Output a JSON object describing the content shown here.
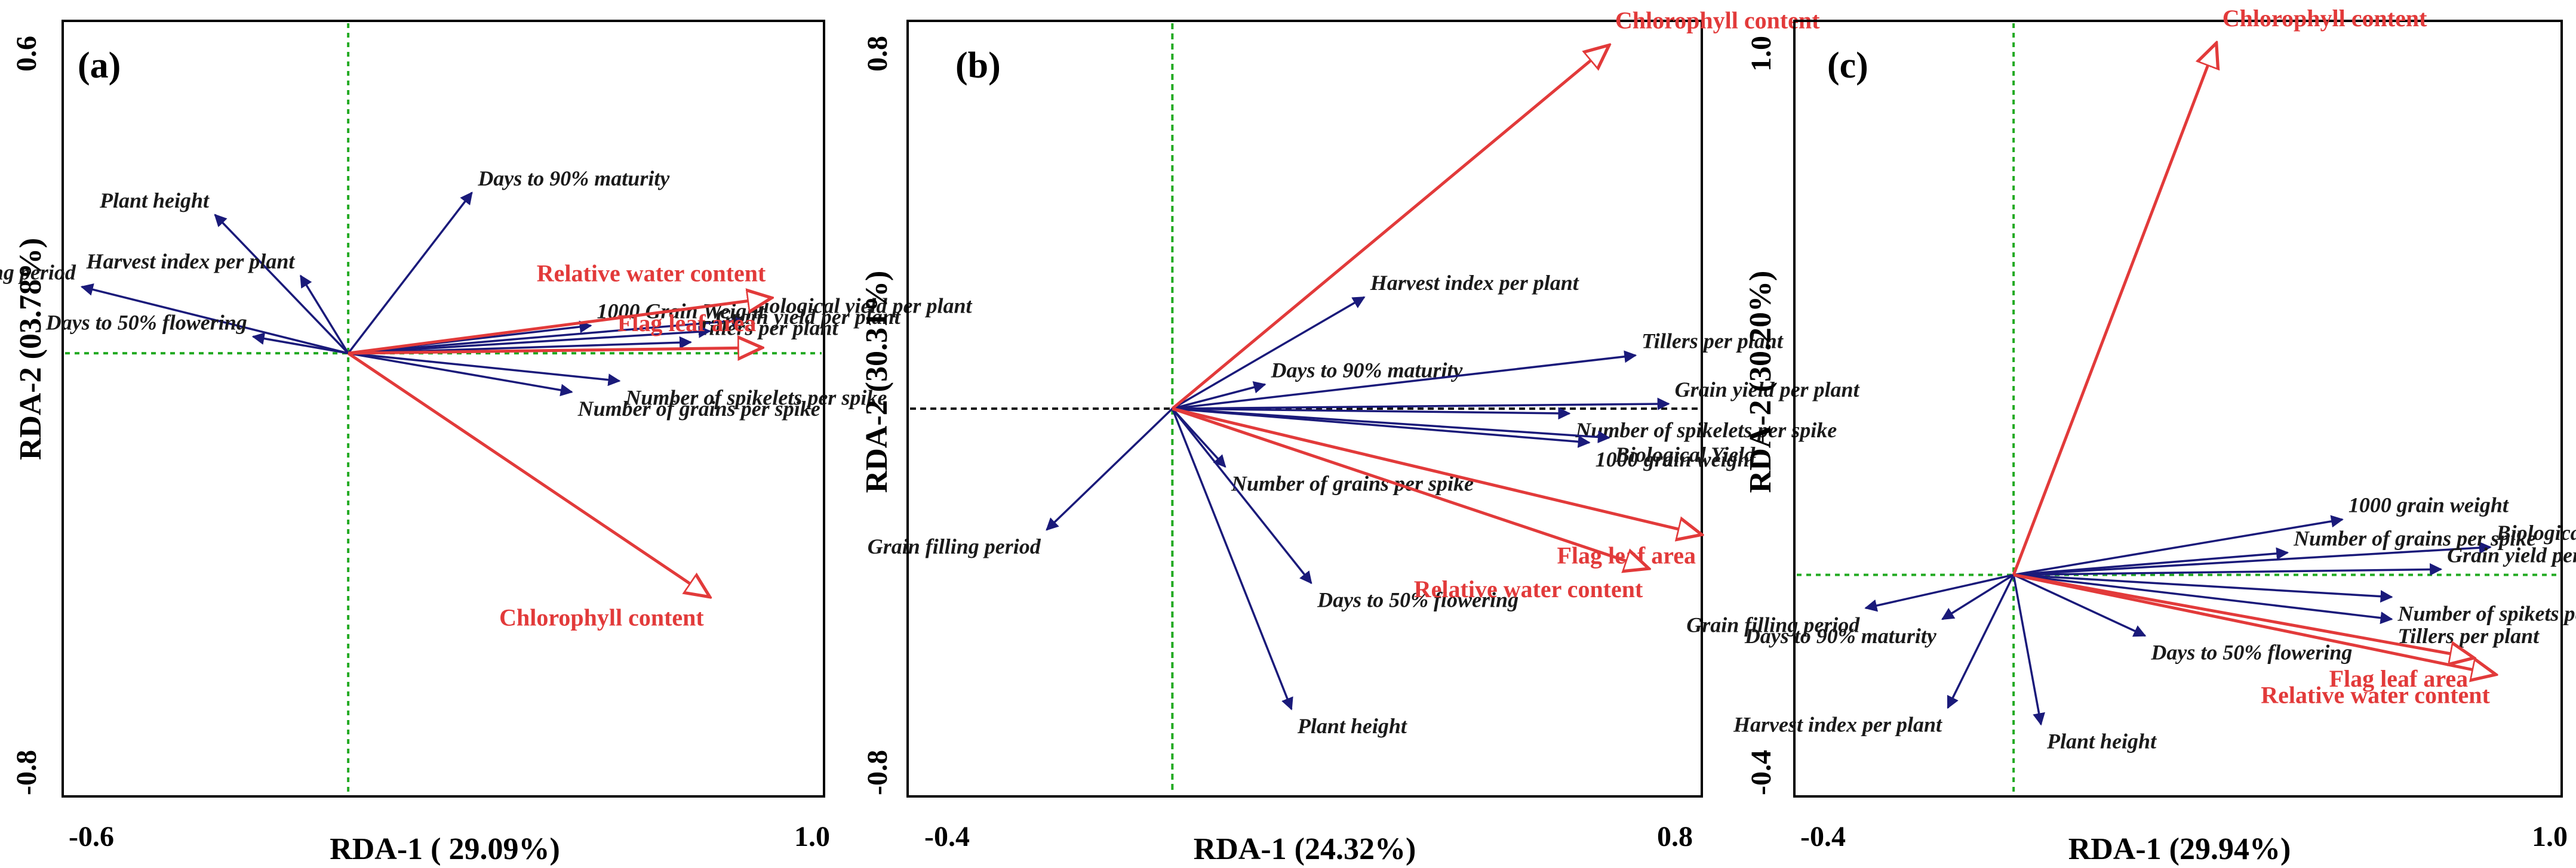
{
  "colors": {
    "env": "#e23a3a",
    "trait": "#1a1a7a",
    "guide": "#22aa22",
    "guide_b": "#111111",
    "frame": "#000000"
  },
  "chart_data": [
    {
      "type": "biplot",
      "panel": "(a)",
      "xlabel": "RDA-1 ( 29.09%)",
      "ylabel": "RDA-2 (03.78%)",
      "xlim": [
        -0.6,
        1.0
      ],
      "ylim": [
        -0.8,
        0.6
      ],
      "x_ticks": [
        "-0.6",
        "1.0"
      ],
      "y_ticks": [
        "0.6",
        "-0.8"
      ],
      "env_vectors": [
        {
          "name": "Relative water content",
          "x": 0.89,
          "y": 0.1
        },
        {
          "name": "Flag leaf area",
          "x": 0.87,
          "y": 0.01
        },
        {
          "name": "Chlorophyll content",
          "x": 0.76,
          "y": -0.44
        }
      ],
      "trait_vectors": [
        {
          "name": "Days to 90% maturity",
          "x": 0.26,
          "y": 0.29
        },
        {
          "name": "Plant height",
          "x": -0.28,
          "y": 0.25
        },
        {
          "name": "Harvest index per plant",
          "x": -0.1,
          "y": 0.14
        },
        {
          "name": "Grain filling period",
          "x": -0.56,
          "y": 0.12
        },
        {
          "name": "Biological yield per plant",
          "x": 0.83,
          "y": 0.06
        },
        {
          "name": "1000 Grain Weight",
          "x": 0.51,
          "y": 0.05
        },
        {
          "name": "Tillers per plant",
          "x": 0.72,
          "y": 0.02
        },
        {
          "name": "Grain yield per plant",
          "x": 0.76,
          "y": 0.04
        },
        {
          "name": "Days to 50% flowering",
          "x": -0.2,
          "y": 0.03
        },
        {
          "name": "Number of grains per spike",
          "x": 0.47,
          "y": -0.07
        },
        {
          "name": "Number of spikelets per spike",
          "x": 0.57,
          "y": -0.05
        }
      ]
    },
    {
      "type": "biplot",
      "panel": "(b)",
      "xlabel": "RDA-1 (24.32%)",
      "ylabel": "RDA-2 (30.31%)",
      "xlim": [
        -0.4,
        0.8
      ],
      "ylim": [
        -0.8,
        0.8
      ],
      "x_ticks": [
        "-0.4",
        "0.8"
      ],
      "y_ticks": [
        "0.8",
        "-0.8"
      ],
      "env_vectors": [
        {
          "name": "Chlorophyll content",
          "x": 0.66,
          "y": 0.75
        },
        {
          "name": "Flag leaf area",
          "x": 0.8,
          "y": -0.26
        },
        {
          "name": "Relative water content",
          "x": 0.72,
          "y": -0.33
        }
      ],
      "trait_vectors": [
        {
          "name": "Harvest index per plant",
          "x": 0.29,
          "y": 0.23
        },
        {
          "name": "Days to 90% maturity",
          "x": 0.14,
          "y": 0.05
        },
        {
          "name": "Tillers per plant",
          "x": 0.7,
          "y": 0.11
        },
        {
          "name": "Grain yield per plant",
          "x": 0.75,
          "y": 0.01
        },
        {
          "name": "Number of spikelets per spike",
          "x": 0.6,
          "y": -0.01
        },
        {
          "name": "Biological Yield",
          "x": 0.66,
          "y": -0.06
        },
        {
          "name": "1000 grain weight",
          "x": 0.63,
          "y": -0.07
        },
        {
          "name": "Number of grains per spike",
          "x": 0.08,
          "y": -0.12
        },
        {
          "name": "Grain filling period",
          "x": -0.19,
          "y": -0.25
        },
        {
          "name": "Days to 50% flowering",
          "x": 0.21,
          "y": -0.36
        },
        {
          "name": "Plant height",
          "x": 0.18,
          "y": -0.62
        }
      ]
    },
    {
      "type": "biplot",
      "panel": "(c)",
      "xlabel": "RDA-1 (29.94%)",
      "ylabel": "RDA-2 (30.20%)",
      "xlim": [
        -0.4,
        1.0
      ],
      "ylim": [
        -0.4,
        1.0
      ],
      "x_ticks": [
        "-0.4",
        "1.0"
      ],
      "y_ticks": [
        "1.0",
        "-0.4"
      ],
      "env_vectors": [
        {
          "name": "Chlorophyll content",
          "x": 0.37,
          "y": 0.96
        },
        {
          "name": "Flag leaf area",
          "x": 0.84,
          "y": -0.15
        },
        {
          "name": "Relative water content",
          "x": 0.88,
          "y": -0.18
        }
      ],
      "trait_vectors": [
        {
          "name": "1000 grain weight",
          "x": 0.6,
          "y": 0.1
        },
        {
          "name": "Biological yield",
          "x": 0.87,
          "y": 0.05
        },
        {
          "name": "Number of grains per spike",
          "x": 0.5,
          "y": 0.04
        },
        {
          "name": "Grain yield per plant",
          "x": 0.78,
          "y": 0.01
        },
        {
          "name": "Grain filling period",
          "x": -0.27,
          "y": -0.06
        },
        {
          "name": "Number of spikets per spike",
          "x": 0.69,
          "y": -0.04
        },
        {
          "name": "Tillers per plant",
          "x": 0.69,
          "y": -0.08
        },
        {
          "name": "Days to 90% maturity",
          "x": -0.13,
          "y": -0.08
        },
        {
          "name": "Days to 50% flowering",
          "x": 0.24,
          "y": -0.11
        },
        {
          "name": "Harvest index per plant",
          "x": -0.12,
          "y": -0.24
        },
        {
          "name": "Plant height",
          "x": 0.05,
          "y": -0.27
        }
      ]
    }
  ]
}
